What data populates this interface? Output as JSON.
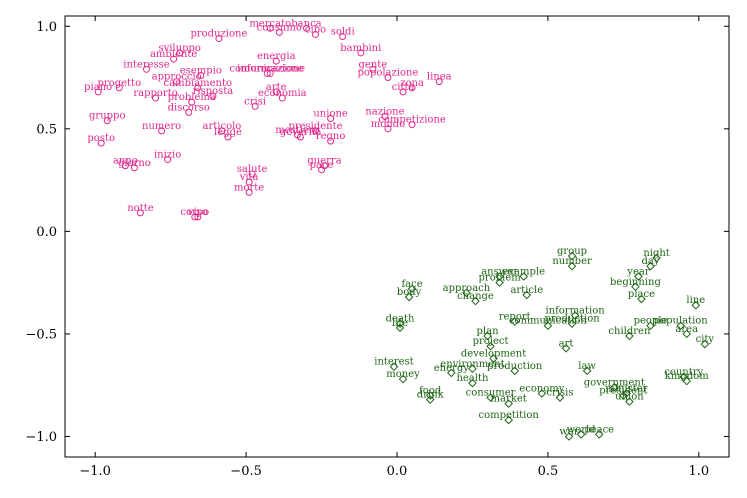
{
  "chart_data": {
    "type": "scatter",
    "title": "",
    "xlabel": "",
    "ylabel": "",
    "xlim": [
      -1.1,
      1.1
    ],
    "ylim": [
      -1.1,
      1.05
    ],
    "x_ticks": [
      -1.0,
      -0.5,
      0.0,
      0.5,
      1.0
    ],
    "y_ticks": [
      1.0,
      0.5,
      0.0,
      -0.5,
      -1.0
    ],
    "x_tick_labels": [
      "−1.0",
      "−0.5",
      "0.0",
      "0.5",
      "1.0"
    ],
    "y_tick_labels": [
      "1.0",
      "0.5",
      "0.0",
      "−0.5",
      "−1.0"
    ],
    "grid": false,
    "legend": "none",
    "series": [
      {
        "marker": "circle",
        "color": "#e0288c",
        "points": [
          {
            "label": "mercato",
            "x": -0.42,
            "y": 0.99
          },
          {
            "label": "consumo",
            "x": -0.39,
            "y": 0.97
          },
          {
            "label": "banca",
            "x": -0.3,
            "y": 0.99
          },
          {
            "label": "cibo",
            "x": -0.27,
            "y": 0.96
          },
          {
            "label": "soldi",
            "x": -0.18,
            "y": 0.95
          },
          {
            "label": "produzione",
            "x": -0.59,
            "y": 0.94
          },
          {
            "label": "sviluppo",
            "x": -0.72,
            "y": 0.87
          },
          {
            "label": "ambiente",
            "x": -0.74,
            "y": 0.84
          },
          {
            "label": "bambini",
            "x": -0.12,
            "y": 0.87
          },
          {
            "label": "energia",
            "x": -0.4,
            "y": 0.83
          },
          {
            "label": "interesse",
            "x": -0.83,
            "y": 0.79
          },
          {
            "label": "gente",
            "x": -0.08,
            "y": 0.79
          },
          {
            "label": "esempio",
            "x": -0.65,
            "y": 0.76
          },
          {
            "label": "comunicazione",
            "x": -0.43,
            "y": 0.77
          },
          {
            "label": "informazione",
            "x": -0.42,
            "y": 0.77
          },
          {
            "label": "popolazione",
            "x": -0.03,
            "y": 0.75
          },
          {
            "label": "approccio",
            "x": -0.73,
            "y": 0.73
          },
          {
            "label": "cambiamento",
            "x": -0.66,
            "y": 0.7
          },
          {
            "label": "linea",
            "x": 0.14,
            "y": 0.73
          },
          {
            "label": "piano",
            "x": -0.99,
            "y": 0.68
          },
          {
            "label": "progetto",
            "x": -0.92,
            "y": 0.7
          },
          {
            "label": "città",
            "x": 0.02,
            "y": 0.68
          },
          {
            "label": "zona",
            "x": 0.05,
            "y": 0.7
          },
          {
            "label": "arte",
            "x": -0.4,
            "y": 0.68
          },
          {
            "label": "economia",
            "x": -0.38,
            "y": 0.65
          },
          {
            "label": "rapporto",
            "x": -0.8,
            "y": 0.65
          },
          {
            "label": "risposta",
            "x": -0.61,
            "y": 0.66
          },
          {
            "label": "problema",
            "x": -0.68,
            "y": 0.63
          },
          {
            "label": "crisi",
            "x": -0.47,
            "y": 0.61
          },
          {
            "label": "discorso",
            "x": -0.69,
            "y": 0.58
          },
          {
            "label": "unione",
            "x": -0.22,
            "y": 0.55
          },
          {
            "label": "nazione",
            "x": -0.04,
            "y": 0.56
          },
          {
            "label": "gruppo",
            "x": -0.96,
            "y": 0.54
          },
          {
            "label": "competizione",
            "x": 0.05,
            "y": 0.52
          },
          {
            "label": "mondo",
            "x": -0.03,
            "y": 0.5
          },
          {
            "label": "numero",
            "x": -0.78,
            "y": 0.49
          },
          {
            "label": "articolo",
            "x": -0.58,
            "y": 0.49
          },
          {
            "label": "presidente",
            "x": -0.27,
            "y": 0.49
          },
          {
            "label": "legge",
            "x": -0.56,
            "y": 0.46
          },
          {
            "label": "governo",
            "x": -0.32,
            "y": 0.46
          },
          {
            "label": "mestiere",
            "x": -0.33,
            "y": 0.47
          },
          {
            "label": "regno",
            "x": -0.22,
            "y": 0.44
          },
          {
            "label": "posto",
            "x": -0.98,
            "y": 0.43
          },
          {
            "label": "anno",
            "x": -0.9,
            "y": 0.32
          },
          {
            "label": "giorno",
            "x": -0.87,
            "y": 0.31
          },
          {
            "label": "inizio",
            "x": -0.76,
            "y": 0.35
          },
          {
            "label": "guerra",
            "x": -0.24,
            "y": 0.32
          },
          {
            "label": "pace",
            "x": -0.25,
            "y": 0.3
          },
          {
            "label": "salute",
            "x": -0.48,
            "y": 0.28
          },
          {
            "label": "vita",
            "x": -0.49,
            "y": 0.24
          },
          {
            "label": "morte",
            "x": -0.49,
            "y": 0.19
          },
          {
            "label": "notte",
            "x": -0.85,
            "y": 0.09
          },
          {
            "label": "corpo",
            "x": -0.67,
            "y": 0.07
          },
          {
            "label": "viso",
            "x": -0.66,
            "y": 0.07
          }
        ]
      },
      {
        "marker": "diamond",
        "color": "#1e6414",
        "points": [
          {
            "label": "group",
            "x": 0.58,
            "y": -0.12
          },
          {
            "label": "night",
            "x": 0.86,
            "y": -0.13
          },
          {
            "label": "number",
            "x": 0.58,
            "y": -0.17
          },
          {
            "label": "day",
            "x": 0.84,
            "y": -0.17
          },
          {
            "label": "answer",
            "x": 0.34,
            "y": -0.22
          },
          {
            "label": "example",
            "x": 0.42,
            "y": -0.22
          },
          {
            "label": "year",
            "x": 0.8,
            "y": -0.22
          },
          {
            "label": "problem",
            "x": 0.34,
            "y": -0.25
          },
          {
            "label": "beginning",
            "x": 0.79,
            "y": -0.27
          },
          {
            "label": "face",
            "x": 0.05,
            "y": -0.28
          },
          {
            "label": "body",
            "x": 0.04,
            "y": -0.32
          },
          {
            "label": "approach",
            "x": 0.23,
            "y": -0.3
          },
          {
            "label": "article",
            "x": 0.43,
            "y": -0.31
          },
          {
            "label": "change",
            "x": 0.26,
            "y": -0.34
          },
          {
            "label": "place",
            "x": 0.81,
            "y": -0.33
          },
          {
            "label": "line",
            "x": 0.99,
            "y": -0.36
          },
          {
            "label": "information",
            "x": 0.59,
            "y": -0.41
          },
          {
            "label": "report",
            "x": 0.39,
            "y": -0.44
          },
          {
            "label": "communication",
            "x": 0.5,
            "y": -0.46
          },
          {
            "label": "production",
            "x": 0.58,
            "y": -0.45
          },
          {
            "label": "death",
            "x": 0.01,
            "y": -0.45
          },
          {
            "label": "life",
            "x": 0.01,
            "y": -0.47
          },
          {
            "label": "people",
            "x": 0.84,
            "y": -0.46
          },
          {
            "label": "population",
            "x": 0.94,
            "y": -0.46
          },
          {
            "label": "children",
            "x": 0.77,
            "y": -0.51
          },
          {
            "label": "area",
            "x": 0.96,
            "y": -0.5
          },
          {
            "label": "plan",
            "x": 0.3,
            "y": -0.51
          },
          {
            "label": "project",
            "x": 0.31,
            "y": -0.56
          },
          {
            "label": "city",
            "x": 1.02,
            "y": -0.55
          },
          {
            "label": "art",
            "x": 0.56,
            "y": -0.57
          },
          {
            "label": "development",
            "x": 0.32,
            "y": -0.62
          },
          {
            "label": "environment",
            "x": 0.25,
            "y": -0.67
          },
          {
            "label": "production",
            "x": 0.39,
            "y": -0.68
          },
          {
            "label": "law",
            "x": 0.63,
            "y": -0.68
          },
          {
            "label": "interest",
            "x": -0.01,
            "y": -0.66
          },
          {
            "label": "energy",
            "x": 0.18,
            "y": -0.69
          },
          {
            "label": "money",
            "x": 0.02,
            "y": -0.72
          },
          {
            "label": "health",
            "x": 0.25,
            "y": -0.74
          },
          {
            "label": "country",
            "x": 0.95,
            "y": -0.71
          },
          {
            "label": "kingdom",
            "x": 0.96,
            "y": -0.73
          },
          {
            "label": "government",
            "x": 0.72,
            "y": -0.76
          },
          {
            "label": "minister",
            "x": 0.76,
            "y": -0.79
          },
          {
            "label": "president",
            "x": 0.75,
            "y": -0.8
          },
          {
            "label": "economy",
            "x": 0.48,
            "y": -0.79
          },
          {
            "label": "crisis",
            "x": 0.54,
            "y": -0.81
          },
          {
            "label": "union",
            "x": 0.77,
            "y": -0.83
          },
          {
            "label": "food",
            "x": 0.11,
            "y": -0.8
          },
          {
            "label": "drink",
            "x": 0.11,
            "y": -0.82
          },
          {
            "label": "consumer",
            "x": 0.31,
            "y": -0.81
          },
          {
            "label": "market",
            "x": 0.37,
            "y": -0.84
          },
          {
            "label": "competition",
            "x": 0.37,
            "y": -0.92
          },
          {
            "label": "war",
            "x": 0.57,
            "y": -1.0
          },
          {
            "label": "world",
            "x": 0.61,
            "y": -0.99
          },
          {
            "label": "peace",
            "x": 0.67,
            "y": -0.99
          }
        ]
      }
    ]
  }
}
